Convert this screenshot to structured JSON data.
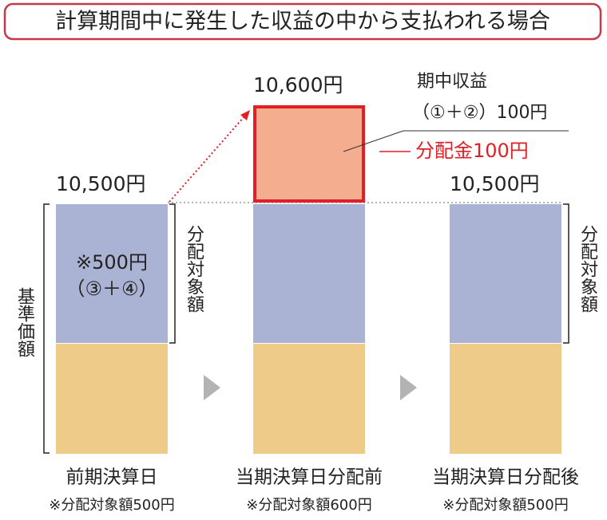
{
  "header": {
    "title": "計算期間中に発生した収益の中から支払われる場合"
  },
  "columns": [
    {
      "value_label": "10,500円",
      "inner_text": [
        "※500円",
        "（③＋④）"
      ],
      "label": "前期決算日",
      "note": "※分配対象額500円"
    },
    {
      "value_label": "10,600円",
      "label": "当期決算日分配前",
      "note": "※分配対象額600円"
    },
    {
      "value_label": "10,500円",
      "label": "当期決算日分配後",
      "note": "※分配対象額500円"
    }
  ],
  "side_labels": {
    "base_price": "基準価額",
    "distributable": [
      "分配対象額",
      "分配対象額"
    ]
  },
  "callout": {
    "income": "期中収益",
    "income_detail": "（①＋②）100円",
    "distribution": "分配金100円"
  }
}
